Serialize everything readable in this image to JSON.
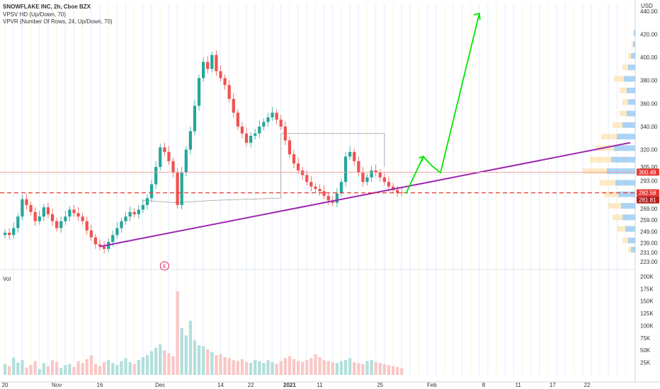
{
  "legend": {
    "title": "SNOWFLAKE INC, 2h, Cboe BZX",
    "indicator1": "VPSV HD (Up/Down, 70)",
    "indicator2": "VPVR (Number Of Rows, 24, Up/Down, 70)",
    "volume_label": "Vol"
  },
  "currency": "USD",
  "earnings_marker": "E",
  "colors": {
    "up": "#26a69a",
    "down": "#ef5350",
    "trendline": "#9c27b0",
    "arrow": "#00e600",
    "dashed": "#e53935",
    "tag_red": "#e53935",
    "tag_dark": "#b71c1c"
  },
  "chart_data": {
    "type": "candlestick",
    "price_axis": {
      "ticks": [
        "440.00",
        "420.00",
        "400.00",
        "380.00",
        "360.00",
        "340.00",
        "320.00",
        "305.00",
        "293.00",
        "269.00",
        "259.00",
        "249.00",
        "239.00",
        "231.00",
        "223.00"
      ],
      "tick_values": [
        440,
        420,
        400,
        380,
        360,
        340,
        320,
        305,
        293,
        269,
        259,
        249,
        239,
        231,
        223
      ],
      "range": [
        218,
        446
      ]
    },
    "price_tags": [
      {
        "label": "300.48",
        "value": 300.48,
        "color": "tag_red"
      },
      {
        "label": "282.58",
        "value": 282.58,
        "color": "tag_red"
      },
      {
        "label": "281.81",
        "value": 281.81,
        "color": "tag_dark"
      }
    ],
    "volume_axis": {
      "ticks": [
        "200K",
        "175K",
        "150K",
        "125K",
        "100K",
        "75K",
        "50K",
        "25K"
      ],
      "tick_values": [
        200,
        175,
        150,
        125,
        100,
        75,
        50,
        25
      ],
      "range": [
        0,
        210
      ]
    },
    "time_axis": {
      "labels": [
        "20",
        "Nov",
        "16",
        "Dec",
        "14",
        "22",
        "2021",
        "11",
        "25",
        "Feb",
        "8",
        "11",
        "17",
        "22"
      ],
      "positions": [
        0,
        12,
        22,
        36,
        50,
        57,
        66,
        73,
        87,
        99,
        111,
        119,
        127,
        135
      ]
    },
    "series_close": [
      248,
      246,
      252,
      262,
      277,
      272,
      266,
      258,
      262,
      270,
      264,
      258,
      252,
      258,
      262,
      268,
      265,
      262,
      258,
      250,
      244,
      238,
      236,
      234,
      240,
      246,
      252,
      258,
      262,
      266,
      264,
      268,
      272,
      278,
      290,
      305,
      322,
      318,
      310,
      300,
      272,
      300,
      320,
      336,
      358,
      382,
      396,
      390,
      402,
      388,
      382,
      376,
      364,
      352,
      340,
      334,
      326,
      332,
      334,
      340,
      344,
      348,
      352,
      346,
      340,
      328,
      316,
      308,
      302,
      298,
      292,
      288,
      286,
      284,
      280,
      276,
      274,
      282,
      292,
      314,
      318,
      310,
      300,
      292,
      296,
      302,
      300,
      296,
      292,
      288,
      285,
      283,
      282.58
    ],
    "volume_bars": [
      22,
      18,
      35,
      25,
      30,
      15,
      20,
      28,
      12,
      24,
      18,
      30,
      26,
      14,
      20,
      22,
      16,
      28,
      24,
      32,
      40,
      22,
      18,
      26,
      30,
      24,
      20,
      28,
      34,
      26,
      22,
      30,
      36,
      40,
      48,
      55,
      62,
      50,
      44,
      38,
      170,
      95,
      80,
      110,
      70,
      60,
      58,
      52,
      46,
      40,
      42,
      36,
      34,
      30,
      28,
      32,
      26,
      24,
      30,
      28,
      24,
      30,
      26,
      22,
      28,
      34,
      38,
      32,
      28,
      26,
      30,
      34,
      42,
      36,
      30,
      28,
      26,
      24,
      28,
      30,
      34,
      26,
      24,
      22,
      28,
      30,
      26,
      24,
      22,
      20,
      18,
      16,
      14
    ],
    "vpvr_profile": [
      {
        "price": 421,
        "up": 2,
        "down": 1
      },
      {
        "price": 411,
        "up": 3,
        "down": 2
      },
      {
        "price": 401,
        "up": 6,
        "down": 4
      },
      {
        "price": 391,
        "up": 10,
        "down": 8
      },
      {
        "price": 381,
        "up": 16,
        "down": 14
      },
      {
        "price": 371,
        "up": 12,
        "down": 10
      },
      {
        "price": 361,
        "up": 10,
        "down": 8
      },
      {
        "price": 351,
        "up": 12,
        "down": 10
      },
      {
        "price": 341,
        "up": 18,
        "down": 14
      },
      {
        "price": 331,
        "up": 26,
        "down": 22
      },
      {
        "price": 321,
        "up": 30,
        "down": 26
      },
      {
        "price": 311,
        "up": 34,
        "down": 30
      },
      {
        "price": 301,
        "up": 40,
        "down": 34
      },
      {
        "price": 291,
        "up": 28,
        "down": 22
      },
      {
        "price": 281,
        "up": 24,
        "down": 20
      },
      {
        "price": 271,
        "up": 20,
        "down": 18
      },
      {
        "price": 261,
        "up": 18,
        "down": 14
      },
      {
        "price": 251,
        "up": 14,
        "down": 12
      },
      {
        "price": 241,
        "up": 10,
        "down": 8
      },
      {
        "price": 233,
        "up": 6,
        "down": 4
      }
    ],
    "trendline": {
      "from": {
        "index": 22,
        "value": 236
      },
      "to": {
        "index": 145,
        "value": 326
      }
    },
    "support_line": 282.58,
    "arrow_path": [
      {
        "index": 93,
        "value": 282
      },
      {
        "index": 97,
        "value": 314
      },
      {
        "index": 99,
        "value": 306
      },
      {
        "index": 101,
        "value": 300
      },
      {
        "index": 110,
        "value": 438
      }
    ],
    "volume_profile_box": [
      {
        "index": 32,
        "value": 276
      },
      {
        "index": 40,
        "value": 274
      },
      {
        "index": 48,
        "value": 276
      },
      {
        "index": 64,
        "value": 278
      },
      {
        "index": 64,
        "value": 334
      },
      {
        "index": 88,
        "value": 334
      },
      {
        "index": 88,
        "value": 305
      }
    ],
    "total_slots": 146
  }
}
